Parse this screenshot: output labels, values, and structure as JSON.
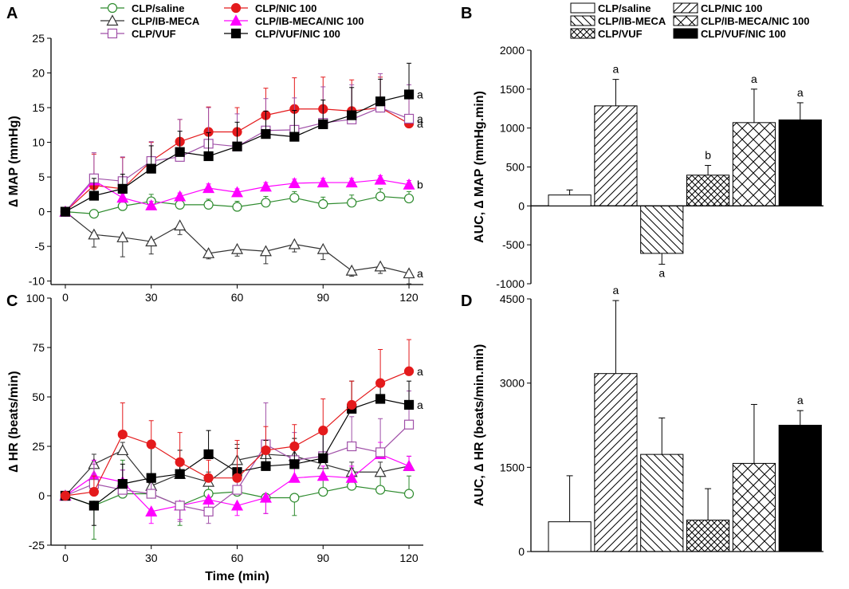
{
  "colors": {
    "saline": "#2e8b2e",
    "nic": "#e41a1c",
    "ibmeca": "#333333",
    "ibmeca_nic": "#ff00ff",
    "vuf": "#a050a8",
    "vuf_nic": "#000000",
    "error_nic": "#e41a1c"
  },
  "legend_line": [
    {
      "key": "saline",
      "label": "CLP/saline",
      "marker": "circle-open"
    },
    {
      "key": "nic",
      "label": "CLP/NIC 100",
      "marker": "circle-filled"
    },
    {
      "key": "ibmeca",
      "label": "CLP/IB-MECA",
      "marker": "triangle-open"
    },
    {
      "key": "ibmeca_nic",
      "label": "CLP/IB-MECA/NIC 100",
      "marker": "triangle-filled"
    },
    {
      "key": "vuf",
      "label": "CLP/VUF",
      "marker": "square-open"
    },
    {
      "key": "vuf_nic",
      "label": "CLP/VUF/NIC 100",
      "marker": "square-filled"
    }
  ],
  "legend_bar": [
    {
      "label": "CLP/saline",
      "pattern": "empty"
    },
    {
      "label": "CLP/NIC 100",
      "pattern": "fdiag"
    },
    {
      "label": "CLP/IB-MECA",
      "pattern": "bdiag"
    },
    {
      "label": "CLP/IB-MECA/NIC 100",
      "pattern": "xdiag"
    },
    {
      "label": "CLP/VUF",
      "pattern": "xdense"
    },
    {
      "label": "CLP/VUF/NIC 100",
      "pattern": "solid"
    }
  ],
  "chart_data": [
    {
      "panel": "A",
      "type": "line",
      "xlabel": "",
      "ylabel": "∆ MAP (mmHg)",
      "x": [
        0,
        10,
        20,
        30,
        40,
        50,
        60,
        70,
        80,
        90,
        100,
        110,
        120
      ],
      "xlim": [
        -5,
        125
      ],
      "ylim": [
        -10.5,
        25
      ],
      "xticks": [
        0,
        30,
        60,
        90,
        120
      ],
      "yticks": [
        -10,
        -5,
        0,
        5,
        10,
        15,
        20,
        25
      ],
      "series": [
        {
          "key": "saline",
          "name": "CLP/saline",
          "values": [
            0,
            -0.3,
            0.8,
            1.5,
            1.0,
            1.0,
            0.7,
            1.3,
            2.0,
            1.1,
            1.3,
            2.2,
            1.9
          ],
          "err": [
            0,
            0.5,
            1.0,
            1.0,
            0.8,
            0.8,
            0.8,
            0.9,
            0.9,
            1.0,
            1.1,
            1.1,
            1.0
          ],
          "end_label": ""
        },
        {
          "key": "nic",
          "name": "CLP/NIC 100",
          "values": [
            0,
            3.8,
            3.3,
            7.3,
            10.1,
            11.5,
            11.5,
            13.9,
            14.8,
            14.8,
            14.5,
            15.0,
            12.7
          ],
          "err": [
            0,
            4.5,
            4.5,
            2.7,
            3.2,
            3.6,
            3.5,
            3.9,
            4.5,
            4.6,
            4.5,
            4.4,
            4.0
          ],
          "end_label": "a"
        },
        {
          "key": "ibmeca",
          "name": "CLP/IB-MECA",
          "values": [
            0,
            -3.3,
            -3.7,
            -4.3,
            -2.0,
            -6.0,
            -5.4,
            -5.7,
            -4.7,
            -5.4,
            -8.5,
            -7.9,
            -8.9
          ],
          "err": [
            0,
            1.8,
            2.8,
            1.8,
            1.3,
            0.8,
            1.0,
            1.8,
            1.1,
            1.5,
            0.8,
            1.0,
            1.5
          ],
          "end_label": "a"
        },
        {
          "key": "ibmeca_nic",
          "name": "CLP/IB-MECA/NIC 100",
          "values": [
            0,
            4.5,
            2.0,
            0.9,
            2.2,
            3.4,
            2.8,
            3.6,
            4.1,
            4.2,
            4.2,
            4.6,
            3.9
          ],
          "err": [
            0,
            0.9,
            0.6,
            0.6,
            0.5,
            0.6,
            0.5,
            0.6,
            0.6,
            0.6,
            0.6,
            0.6,
            0.6
          ],
          "end_label": "b"
        },
        {
          "key": "vuf",
          "name": "CLP/VUF",
          "values": [
            0,
            4.8,
            4.4,
            7.3,
            7.9,
            9.8,
            9.4,
            11.7,
            11.8,
            12.8,
            13.3,
            15.0,
            13.4
          ],
          "err": [
            0,
            3.7,
            3.5,
            2.8,
            5.4,
            5.2,
            4.7,
            4.6,
            4.6,
            5.2,
            5.0,
            4.9,
            4.9
          ],
          "end_label": "a"
        },
        {
          "key": "vuf_nic",
          "name": "CLP/VUF/NIC 100",
          "values": [
            0,
            2.3,
            3.3,
            6.2,
            8.6,
            8.0,
            9.4,
            11.2,
            10.8,
            12.6,
            13.9,
            15.9,
            16.9
          ],
          "err": [
            0,
            2.5,
            2.1,
            3.3,
            3.0,
            3.4,
            3.5,
            3.3,
            3.8,
            3.5,
            4.0,
            3.2,
            4.5
          ],
          "end_label": "a"
        }
      ]
    },
    {
      "panel": "B",
      "type": "bar",
      "ylabel": "AUC, ∆ MAP (mmHg.min)",
      "ylim": [
        -1000,
        2000
      ],
      "yticks": [
        -1000,
        -500,
        0,
        500,
        1000,
        1500,
        2000
      ],
      "categories": [
        "CLP/saline",
        "CLP/NIC 100",
        "CLP/IB-MECA",
        "CLP/VUF",
        "CLP/IB-MECA/NIC 100",
        "CLP/VUF/NIC 100"
      ],
      "patterns": [
        "empty",
        "fdiag",
        "bdiag",
        "xdense",
        "xdiag",
        "solid"
      ],
      "values": [
        140,
        1285,
        -610,
        395,
        1070,
        1105
      ],
      "err": [
        65,
        340,
        140,
        125,
        430,
        220
      ],
      "labels": [
        "",
        "a",
        "a",
        "b",
        "a",
        "a"
      ]
    },
    {
      "panel": "C",
      "type": "line",
      "xlabel": "Time (min)",
      "ylabel": "∆ HR (beats/min)",
      "x": [
        0,
        10,
        20,
        30,
        40,
        50,
        60,
        70,
        80,
        90,
        100,
        110,
        120
      ],
      "xlim": [
        -5,
        125
      ],
      "ylim": [
        -25,
        100
      ],
      "xticks": [
        0,
        30,
        60,
        90,
        120
      ],
      "yticks": [
        -25,
        0,
        25,
        50,
        75,
        100
      ],
      "series": [
        {
          "key": "saline",
          "name": "CLP/saline",
          "values": [
            0,
            -5,
            1,
            1,
            -5,
            1,
            2,
            -1,
            -1,
            2,
            5,
            3,
            1
          ],
          "err": [
            0,
            17,
            17,
            8,
            10,
            8,
            7,
            8,
            9,
            8,
            9,
            10,
            9
          ],
          "end_label": ""
        },
        {
          "key": "ibmeca",
          "name": "CLP/IB-MECA",
          "values": [
            0,
            16,
            23,
            5,
            11,
            7,
            18,
            21,
            20,
            16,
            12,
            12,
            15
          ],
          "err": [
            0,
            5,
            4,
            5,
            6,
            5,
            8,
            6,
            6,
            5,
            5,
            5,
            5
          ],
          "end_label": ""
        },
        {
          "key": "ibmeca_nic",
          "name": "CLP/IB-MECA/NIC 100",
          "values": [
            0,
            10,
            7,
            -8,
            -5,
            -2,
            -5,
            -1,
            9,
            10,
            9,
            21,
            15
          ],
          "err": [
            0,
            8,
            6,
            6,
            7,
            6,
            5,
            8,
            6,
            5,
            6,
            6,
            5
          ],
          "end_label": ""
        },
        {
          "key": "vuf",
          "name": "CLP/VUF",
          "values": [
            0,
            6,
            3,
            1,
            -5,
            -8,
            3,
            26,
            18,
            20,
            25,
            22,
            36
          ],
          "err": [
            0,
            10,
            10,
            10,
            8,
            6,
            10,
            21,
            14,
            15,
            15,
            17,
            17
          ],
          "end_label": ""
        },
        {
          "key": "vuf_nic",
          "name": "CLP/VUF/NIC 100",
          "values": [
            0,
            -5,
            6,
            9,
            11,
            21,
            12,
            15,
            16,
            19,
            44,
            49,
            46
          ],
          "err": [
            0,
            10,
            10,
            15,
            12,
            12,
            12,
            13,
            13,
            13,
            14,
            9,
            12
          ],
          "end_label": "a"
        },
        {
          "key": "nic",
          "name": "CLP/NIC 100",
          "values": [
            0,
            2,
            31,
            26,
            17,
            9,
            9,
            23,
            25,
            33,
            46,
            57,
            63
          ],
          "err": [
            0,
            8,
            16,
            12,
            15,
            9,
            19,
            12,
            11,
            16,
            12,
            17,
            16
          ],
          "end_label": "a"
        }
      ]
    },
    {
      "panel": "D",
      "type": "bar",
      "ylabel": "AUC, ∆ HR (beats/min.min)",
      "ylim": [
        0,
        4500
      ],
      "yticks": [
        0,
        1500,
        3000,
        4500
      ],
      "categories": [
        "CLP/saline",
        "CLP/NIC 100",
        "CLP/IB-MECA",
        "CLP/VUF",
        "CLP/IB-MECA/NIC 100",
        "CLP/VUF/NIC 100"
      ],
      "patterns": [
        "empty",
        "fdiag",
        "bdiag",
        "xdense",
        "xdiag",
        "solid"
      ],
      "values": [
        530,
        3170,
        1730,
        560,
        1570,
        2250
      ],
      "err": [
        820,
        1300,
        650,
        560,
        1050,
        260
      ],
      "labels": [
        "",
        "a",
        "",
        "",
        "",
        "a"
      ]
    }
  ],
  "panel_labels": [
    "A",
    "B",
    "C",
    "D"
  ]
}
